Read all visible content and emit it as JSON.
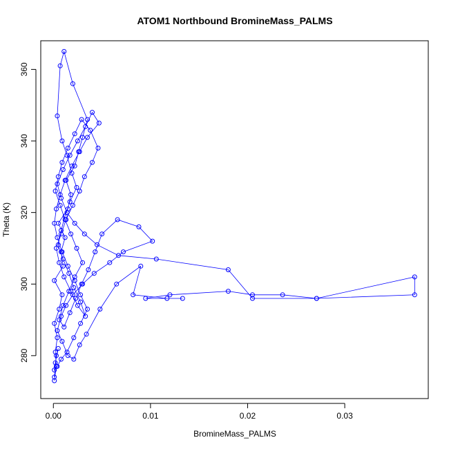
{
  "chart_data": {
    "type": "line",
    "title": "ATOM1 Northbound BromineMass_PALMS",
    "xlabel": "BromineMass_PALMS",
    "ylabel": "Theta (K)",
    "xlim": [
      -0.0013,
      0.0386
    ],
    "ylim": [
      268,
      368
    ],
    "x_ticks": [
      0.0,
      0.01,
      0.02,
      0.03
    ],
    "x_tick_labels": [
      "0.00",
      "0.01",
      "0.02",
      "0.03"
    ],
    "y_ticks": [
      280,
      300,
      320,
      340,
      360
    ],
    "y_tick_labels": [
      "280",
      "300",
      "320",
      "340",
      "360"
    ],
    "grid": false,
    "legend": "none",
    "color": "#0000ff",
    "series": [
      {
        "x": [
          0.0001,
          0.0003,
          0.0002,
          0.0004,
          0.0001,
          0.0006,
          0.0009,
          0.0001,
          0.001,
          0.0008,
          0.0012,
          0.0005,
          0.0015,
          0.0018,
          0.0013,
          0.0022,
          0.0026,
          0.003,
          0.0035,
          0.002,
          0.0011,
          0.0007,
          0.0004,
          0.0009,
          0.0014,
          0.0019,
          0.0024,
          0.0017,
          0.0012,
          0.0008,
          0.0005,
          0.001,
          0.0016,
          0.0021,
          0.0028,
          0.0033,
          0.0025,
          0.0018,
          0.0011,
          0.0006,
          0.0003,
          0.0008,
          0.0013,
          0.002,
          0.0027,
          0.0032,
          0.004,
          0.0046,
          0.0038,
          0.0029,
          0.0022,
          0.0015,
          0.0009,
          0.0005,
          0.0002,
          0.0007,
          0.0012,
          0.0018,
          0.0024,
          0.003,
          0.0022,
          0.0016,
          0.001,
          0.0006,
          0.0011,
          0.0017,
          0.0023,
          0.0029,
          0.0036,
          0.0043,
          0.005,
          0.0066,
          0.0088,
          0.0102,
          0.0072,
          0.0058,
          0.0042,
          0.003,
          0.002,
          0.0013,
          0.0008,
          0.0004,
          0.0009,
          0.0015,
          0.0021,
          0.0027,
          0.0034,
          0.0048,
          0.0065,
          0.009,
          0.0082,
          0.0117,
          0.0133,
          0.0095,
          0.012,
          0.018,
          0.0205,
          0.0236,
          0.0271,
          0.0372,
          0.0372,
          0.0271,
          0.0205,
          0.018,
          0.0106,
          0.0067,
          0.0045,
          0.0032,
          0.0022,
          0.0014,
          0.0008,
          0.0004,
          0.001,
          0.0017,
          0.0025,
          0.0033,
          0.004,
          0.0047,
          0.0035,
          0.0027,
          0.0019,
          0.0012,
          0.0007,
          0.0003,
          0.0001,
          0.0004,
          0.0009,
          0.0015,
          0.0022,
          0.0028,
          0.0035,
          0.0028,
          0.0021,
          0.0014,
          0.0008,
          0.0004,
          0.0001,
          0.0002,
          0.0005,
          0.0003,
          0.0001
        ],
        "y": [
          273,
          277,
          281,
          285,
          289,
          293,
          297,
          301,
          305,
          309,
          313,
          317,
          321,
          325,
          329,
          333,
          337,
          341,
          346,
          356,
          365,
          361,
          347,
          340,
          336,
          331,
          327,
          323,
          319,
          315,
          311,
          307,
          303,
          299,
          295,
          291,
          294,
          298,
          302,
          306,
          310,
          314,
          318,
          322,
          326,
          330,
          334,
          338,
          343,
          346,
          342,
          338,
          334,
          330,
          326,
          322,
          318,
          314,
          310,
          306,
          302,
          298,
          294,
          290,
          288,
          292,
          296,
          300,
          304,
          309,
          314,
          318,
          316,
          312,
          309,
          306,
          303,
          300,
          297,
          294,
          291,
          287,
          284,
          280,
          279,
          283,
          286,
          293,
          300,
          305,
          297,
          296,
          296,
          296,
          297,
          298,
          297,
          297,
          296,
          302,
          297,
          296,
          296,
          304,
          307,
          308,
          311,
          314,
          317,
          320,
          324,
          328,
          332,
          336,
          340,
          344,
          348,
          345,
          341,
          337,
          333,
          329,
          325,
          321,
          317,
          313,
          309,
          305,
          301,
          297,
          293,
          289,
          285,
          281,
          279,
          277,
          276,
          278,
          282,
          280,
          274
        ]
      }
    ]
  }
}
